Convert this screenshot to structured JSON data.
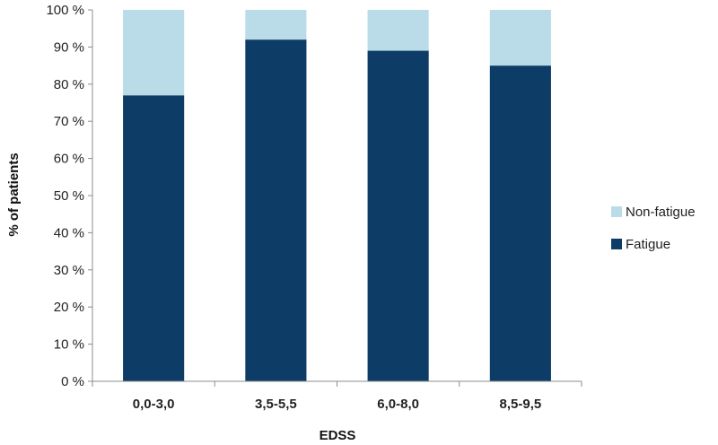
{
  "chart_data": {
    "type": "bar",
    "stacked": true,
    "percent": true,
    "title": "",
    "xlabel": "EDSS",
    "ylabel": "% of patients",
    "ylim": [
      0,
      100
    ],
    "yticks": [
      0,
      10,
      20,
      30,
      40,
      50,
      60,
      70,
      80,
      90,
      100
    ],
    "ytick_labels": [
      "0 %",
      "10 %",
      "20 %",
      "30 %",
      "40 %",
      "50 %",
      "60 %",
      "70 %",
      "80 %",
      "90 %",
      "100 %"
    ],
    "grid": false,
    "legend_position": "right",
    "categories": [
      "0,0-3,0",
      "3,5-5,5",
      "6,0-8,0",
      "8,5-9,5"
    ],
    "series": [
      {
        "name": "Fatigue",
        "values": [
          77,
          92,
          89,
          85
        ],
        "color": "#0d3d66"
      },
      {
        "name": "Non-fatigue",
        "values": [
          23,
          8,
          11,
          15
        ],
        "color": "#b9dce8"
      }
    ]
  }
}
